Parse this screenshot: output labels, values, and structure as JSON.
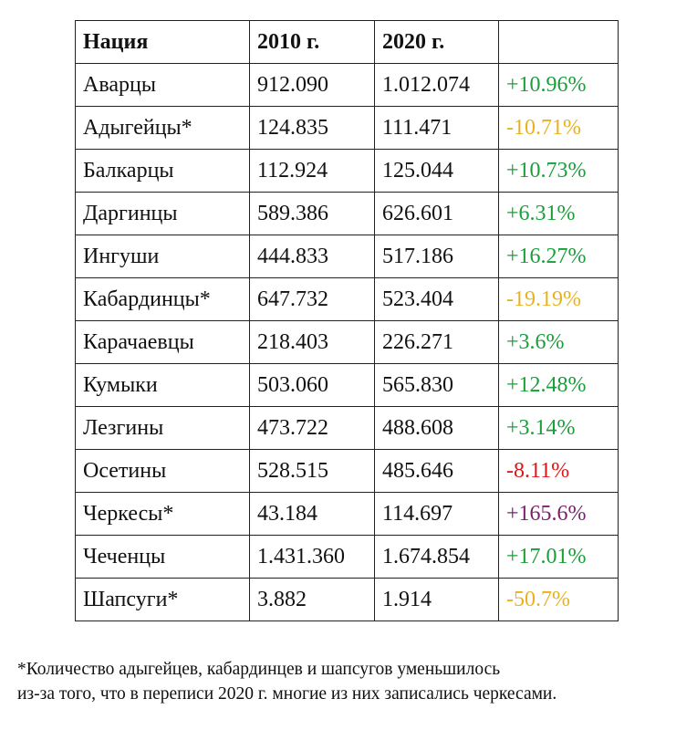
{
  "table": {
    "header": [
      "Нация",
      "2010 г.",
      "2020 г.",
      ""
    ],
    "rows": [
      {
        "cells": [
          "Аварцы",
          "912.090",
          "1.012.074",
          "+10.96%"
        ],
        "color": "#1a9e3a"
      },
      {
        "cells": [
          "Адыгейцы*",
          "124.835",
          "111.471",
          "-10.71%"
        ],
        "color": "#e9b21d"
      },
      {
        "cells": [
          "Балкарцы",
          "112.924",
          "125.044",
          "+10.73%"
        ],
        "color": "#1a9e3a"
      },
      {
        "cells": [
          "Даргинцы",
          "589.386",
          "626.601",
          "+6.31%"
        ],
        "color": "#1a9e3a"
      },
      {
        "cells": [
          "Ингуши",
          "444.833",
          "517.186",
          "+16.27%"
        ],
        "color": "#1a9e3a"
      },
      {
        "cells": [
          "Кабардинцы*",
          "647.732",
          "523.404",
          "-19.19%"
        ],
        "color": "#e9b21d"
      },
      {
        "cells": [
          "Карачаевцы",
          "218.403",
          "226.271",
          "+3.6%"
        ],
        "color": "#1a9e3a"
      },
      {
        "cells": [
          "Кумыки",
          "503.060",
          "565.830",
          "+12.48%"
        ],
        "color": "#1a9e3a"
      },
      {
        "cells": [
          "Лезгины",
          "473.722",
          "488.608",
          "+3.14%"
        ],
        "color": "#1a9e3a"
      },
      {
        "cells": [
          "Осетины",
          "528.515",
          "485.646",
          "-8.11%"
        ],
        "color": "#e01414"
      },
      {
        "cells": [
          "Черкесы*",
          "43.184",
          "114.697",
          "+165.6%"
        ],
        "color": "#7a1f6d"
      },
      {
        "cells": [
          "Чеченцы",
          "1.431.360",
          "1.674.854",
          "+17.01%"
        ],
        "color": "#1a9e3a"
      },
      {
        "cells": [
          "Шапсуги*",
          "3.882",
          "1.914",
          "-50.7%"
        ],
        "color": "#e9b21d"
      }
    ]
  },
  "footnote": [
    "*Количество адыгейцев, кабардинцев и шапсугов уменьшилось",
    "из-за того, что в переписи 2020 г. многие из них записались черкесами."
  ]
}
